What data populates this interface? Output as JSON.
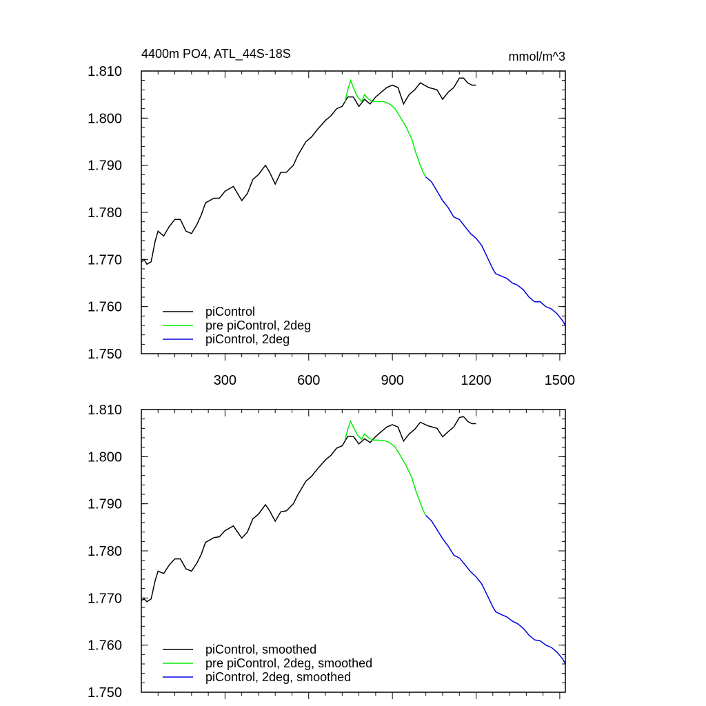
{
  "chart_data": [
    {
      "type": "line",
      "title": "4400m PO4, ATL_44S-18S",
      "units": "mmol/m^3",
      "xlim": [
        0,
        1520
      ],
      "ylim": [
        1.75,
        1.81
      ],
      "x_ticks": [
        300,
        600,
        900,
        1200,
        1500
      ],
      "x_tick_labels": [
        "300",
        "600",
        "900",
        "1200",
        "1500"
      ],
      "y_ticks": [
        1.75,
        1.76,
        1.77,
        1.78,
        1.79,
        1.8,
        1.81
      ],
      "y_tick_labels": [
        "1.750",
        "1.760",
        "1.770",
        "1.780",
        "1.790",
        "1.800",
        "1.810"
      ],
      "legend_placement": "bottom-left",
      "grid": false,
      "series": [
        {
          "name": "piControl",
          "color": "#000000",
          "x": [
            1,
            10,
            20,
            35,
            50,
            60,
            80,
            100,
            120,
            140,
            160,
            180,
            200,
            215,
            230,
            260,
            280,
            300,
            330,
            345,
            360,
            380,
            400,
            420,
            445,
            460,
            480,
            500,
            520,
            545,
            560,
            590,
            610,
            630,
            660,
            680,
            700,
            720,
            740,
            760,
            780,
            800,
            820,
            840,
            860,
            880,
            900,
            920,
            940,
            960,
            980,
            1000,
            1030,
            1060,
            1080,
            1100,
            1120,
            1140,
            1155,
            1170,
            1185,
            1200
          ],
          "y": [
            1.7695,
            1.77,
            1.769,
            1.7695,
            1.774,
            1.776,
            1.775,
            1.777,
            1.7785,
            1.7785,
            1.776,
            1.7755,
            1.7775,
            1.7795,
            1.782,
            1.783,
            1.783,
            1.7845,
            1.7855,
            1.784,
            1.7825,
            1.784,
            1.787,
            1.788,
            1.79,
            1.7885,
            1.786,
            1.7885,
            1.7885,
            1.79,
            1.792,
            1.795,
            1.796,
            1.7975,
            1.7995,
            1.8005,
            1.802,
            1.8025,
            1.8045,
            1.8045,
            1.8025,
            1.804,
            1.803,
            1.8045,
            1.8055,
            1.8065,
            1.807,
            1.8065,
            1.803,
            1.805,
            1.806,
            1.8075,
            1.8065,
            1.806,
            1.804,
            1.8055,
            1.8065,
            1.8085,
            1.8085,
            1.8075,
            1.807,
            1.807
          ]
        },
        {
          "name": "pre piControl, 2deg",
          "color": "#00ee00",
          "x": [
            730,
            740,
            750,
            760,
            775,
            790,
            800,
            815,
            830,
            850,
            870,
            890,
            910,
            930,
            950,
            970,
            985,
            1000,
            1010,
            1020
          ],
          "y": [
            1.8035,
            1.806,
            1.808,
            1.8065,
            1.8045,
            1.8035,
            1.805,
            1.804,
            1.8035,
            1.8035,
            1.8035,
            1.803,
            1.802,
            1.8,
            1.798,
            1.7955,
            1.7925,
            1.79,
            1.7885,
            1.7875
          ]
        },
        {
          "name": "piControl, 2deg",
          "color": "#0000dd",
          "x": [
            1020,
            1040,
            1060,
            1080,
            1100,
            1120,
            1140,
            1160,
            1180,
            1200,
            1220,
            1240,
            1260,
            1270,
            1290,
            1310,
            1330,
            1350,
            1370,
            1390,
            1410,
            1430,
            1450,
            1470,
            1490,
            1510,
            1520
          ],
          "y": [
            1.7875,
            1.7865,
            1.7845,
            1.7825,
            1.781,
            1.779,
            1.7785,
            1.777,
            1.7755,
            1.7745,
            1.773,
            1.7705,
            1.768,
            1.767,
            1.7665,
            1.766,
            1.765,
            1.7645,
            1.7635,
            1.762,
            1.761,
            1.761,
            1.76,
            1.7595,
            1.7585,
            1.757,
            1.756
          ]
        }
      ]
    },
    {
      "type": "line",
      "xlim": [
        0,
        1520
      ],
      "ylim": [
        1.75,
        1.81
      ],
      "y_ticks": [
        1.75,
        1.76,
        1.77,
        1.78,
        1.79,
        1.8,
        1.81
      ],
      "y_tick_labels": [
        "1.750",
        "1.760",
        "1.770",
        "1.780",
        "1.790",
        "1.800",
        "1.810"
      ],
      "legend_placement": "bottom-left",
      "grid": false,
      "series": [
        {
          "name": "piControl, smoothed",
          "color": "#000000",
          "x": [
            1,
            10,
            20,
            35,
            50,
            60,
            80,
            100,
            120,
            140,
            160,
            180,
            200,
            215,
            230,
            260,
            280,
            300,
            330,
            345,
            360,
            380,
            400,
            420,
            445,
            460,
            480,
            500,
            520,
            545,
            560,
            590,
            610,
            630,
            660,
            680,
            700,
            720,
            740,
            760,
            780,
            800,
            820,
            840,
            860,
            880,
            900,
            920,
            940,
            960,
            980,
            1000,
            1030,
            1060,
            1080,
            1100,
            1120,
            1140,
            1155,
            1170,
            1185,
            1200
          ],
          "y": [
            1.7695,
            1.7698,
            1.7692,
            1.7698,
            1.7738,
            1.7757,
            1.7752,
            1.777,
            1.7783,
            1.7783,
            1.7762,
            1.7757,
            1.7775,
            1.7793,
            1.7818,
            1.7828,
            1.783,
            1.7843,
            1.7853,
            1.784,
            1.7827,
            1.784,
            1.7868,
            1.7878,
            1.7898,
            1.7885,
            1.7863,
            1.7883,
            1.7885,
            1.79,
            1.7918,
            1.7948,
            1.7958,
            1.7973,
            1.7993,
            1.8003,
            1.8018,
            1.8023,
            1.8043,
            1.8043,
            1.8027,
            1.8038,
            1.803,
            1.8043,
            1.8053,
            1.8063,
            1.8068,
            1.8063,
            1.8033,
            1.8048,
            1.8058,
            1.8073,
            1.8065,
            1.806,
            1.8042,
            1.8053,
            1.8063,
            1.8083,
            1.8085,
            1.8075,
            1.807,
            1.807
          ]
        },
        {
          "name": "pre piControl, 2deg, smoothed",
          "color": "#00ee00",
          "x": [
            730,
            740,
            750,
            760,
            775,
            790,
            800,
            815,
            830,
            850,
            870,
            890,
            910,
            930,
            950,
            970,
            985,
            1000,
            1010,
            1020
          ],
          "y": [
            1.8035,
            1.8058,
            1.8075,
            1.8063,
            1.8045,
            1.8037,
            1.8048,
            1.804,
            1.8035,
            1.8035,
            1.8034,
            1.803,
            1.802,
            1.8001,
            1.798,
            1.7955,
            1.7926,
            1.7902,
            1.7886,
            1.7875
          ]
        },
        {
          "name": "piControl, 2deg, smoothed",
          "color": "#0000dd",
          "x": [
            1020,
            1040,
            1060,
            1080,
            1100,
            1120,
            1140,
            1160,
            1180,
            1200,
            1220,
            1240,
            1260,
            1270,
            1290,
            1310,
            1330,
            1350,
            1370,
            1390,
            1410,
            1430,
            1450,
            1470,
            1490,
            1510,
            1520
          ],
          "y": [
            1.7875,
            1.7864,
            1.7845,
            1.7826,
            1.781,
            1.7791,
            1.7785,
            1.7771,
            1.7756,
            1.7745,
            1.773,
            1.7706,
            1.7681,
            1.7671,
            1.7665,
            1.766,
            1.7651,
            1.7645,
            1.7635,
            1.7621,
            1.7611,
            1.7609,
            1.76,
            1.7595,
            1.7585,
            1.7571,
            1.756
          ]
        }
      ]
    }
  ]
}
